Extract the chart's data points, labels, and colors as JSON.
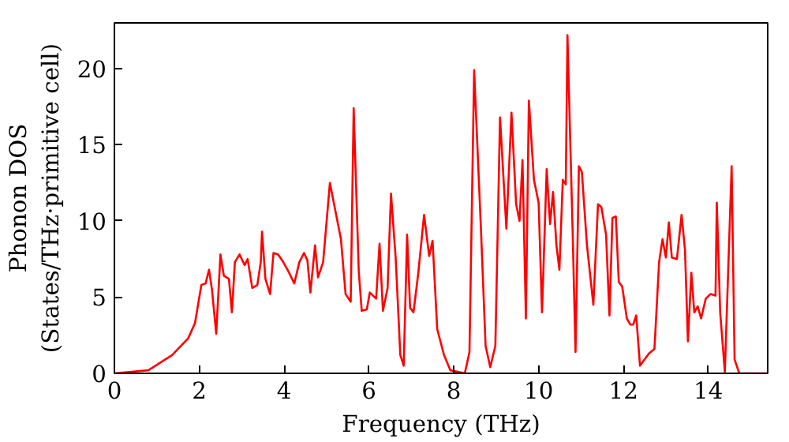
{
  "chart_data": {
    "type": "line",
    "xlabel": "Frequency (THz)",
    "ylabel": "Phonon DOS\n(States/THz·primitive cell)",
    "xlim": [
      0,
      15.4
    ],
    "ylim": [
      0,
      23
    ],
    "xticks": [
      0,
      2,
      4,
      6,
      8,
      10,
      12,
      14
    ],
    "yticks": [
      0,
      5,
      10,
      15,
      20
    ],
    "grid": false,
    "marker": "none",
    "line_style": "solid",
    "series": [
      {
        "color": "#ff0000",
        "x": [
          0,
          0.8,
          1.36,
          1.74,
          1.9,
          2.05,
          2.15,
          2.23,
          2.3,
          2.4,
          2.5,
          2.58,
          2.7,
          2.77,
          2.84,
          2.95,
          3.07,
          3.14,
          3.25,
          3.37,
          3.45,
          3.48,
          3.56,
          3.67,
          3.75,
          3.86,
          3.98,
          4.1,
          4.24,
          4.36,
          4.47,
          4.55,
          4.62,
          4.73,
          4.8,
          4.92,
          5.08,
          5.34,
          5.45,
          5.57,
          5.64,
          5.76,
          5.83,
          5.95,
          6.02,
          6.17,
          6.25,
          6.33,
          6.44,
          6.52,
          6.63,
          6.74,
          6.82,
          6.9,
          6.97,
          7.05,
          7.16,
          7.3,
          7.42,
          7.5,
          7.61,
          7.77,
          7.92,
          8.26,
          8.37,
          8.48,
          8.64,
          8.75,
          8.86,
          8.98,
          9.09,
          9.24,
          9.36,
          9.47,
          9.55,
          9.62,
          9.7,
          9.77,
          9.89,
          10,
          10.08,
          10.19,
          10.27,
          10.34,
          10.42,
          10.49,
          10.57,
          10.64,
          10.68,
          10.8,
          10.87,
          10.95,
          11.02,
          11.14,
          11.29,
          11.4,
          11.48,
          11.59,
          11.67,
          11.74,
          11.82,
          11.89,
          11.97,
          12.08,
          12.16,
          12.23,
          12.3,
          12.39,
          12.6,
          12.73,
          12.84,
          12.92,
          13,
          13.07,
          13.14,
          13.26,
          13.37,
          13.45,
          13.52,
          13.6,
          13.67,
          13.75,
          13.83,
          13.94,
          14.05,
          14.17,
          14.2,
          14.28,
          14.39,
          14.55,
          14.62,
          14.73,
          15.4
        ],
        "values": [
          0,
          0.2,
          1.2,
          2.3,
          3.3,
          5.8,
          5.9,
          6.8,
          5.5,
          2.6,
          7.8,
          6.4,
          6.2,
          4,
          7.3,
          7.8,
          7.1,
          7.5,
          5.6,
          5.8,
          7.3,
          9.3,
          6.2,
          5.2,
          7.9,
          7.8,
          7.3,
          6.7,
          5.9,
          7.3,
          7.9,
          7.4,
          5.3,
          8.4,
          6.3,
          7.3,
          12.5,
          8.8,
          5.2,
          4.7,
          17.4,
          6.7,
          4.1,
          4.2,
          5.3,
          4.9,
          8.5,
          4.1,
          5.6,
          11.8,
          7.6,
          1.2,
          0.5,
          9.1,
          4.3,
          4,
          6.5,
          10.4,
          7.7,
          8.7,
          2.9,
          1.2,
          0.2,
          0,
          1.4,
          19.9,
          9.5,
          1.8,
          0.4,
          1.8,
          16.8,
          9.5,
          17.1,
          11.1,
          10,
          14,
          3.6,
          17.9,
          12.7,
          11.2,
          4,
          13.4,
          9.8,
          11.9,
          8.4,
          6.8,
          12.7,
          12.4,
          22.2,
          9.5,
          1.4,
          13.6,
          13.2,
          8.4,
          4.5,
          11.1,
          10.9,
          9.1,
          3.8,
          10.2,
          10.3,
          6,
          5.7,
          3.6,
          3.2,
          3.2,
          3.8,
          0.5,
          1.3,
          1.6,
          7.3,
          8.8,
          7.6,
          9.9,
          7.6,
          7.5,
          10.4,
          8.1,
          2.1,
          6.6,
          4,
          4.4,
          3.6,
          4.9,
          5.2,
          5.1,
          11.2,
          4,
          0.1,
          13.6,
          0.9,
          0,
          0
        ]
      }
    ]
  }
}
